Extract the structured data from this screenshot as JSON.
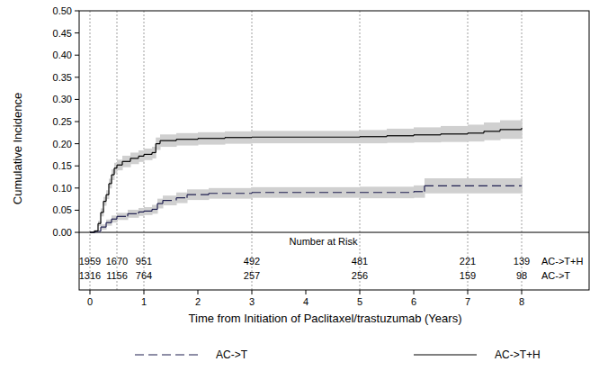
{
  "chart_data": {
    "type": "line",
    "x_label": "Time from Initiation of Paclitaxel/trastuzumab (Years)",
    "y_label": "Cumulative Incidence",
    "risk_title": "Number at Risk",
    "xlim": [
      -0.2,
      9.25
    ],
    "ylim": [
      -0.13,
      0.5
    ],
    "xticks": [
      0,
      1,
      2,
      3,
      4,
      5,
      6,
      7,
      8
    ],
    "yticks": [
      {
        "value": 0,
        "label": "0.00"
      },
      {
        "value": 0.05,
        "label": "0.05"
      },
      {
        "value": 0.1,
        "label": "0.10"
      },
      {
        "value": 0.15,
        "label": "0.15"
      },
      {
        "value": 0.2,
        "label": "0.20"
      },
      {
        "value": 0.25,
        "label": "0.25"
      },
      {
        "value": 0.3,
        "label": "0.30"
      },
      {
        "value": 0.35,
        "label": "0.35"
      },
      {
        "value": 0.4,
        "label": "0.40"
      },
      {
        "value": 0.45,
        "label": "0.45"
      },
      {
        "value": 0.5,
        "label": "0.50"
      }
    ],
    "risk_times": [
      0,
      0.5,
      1,
      3,
      5,
      7,
      8
    ],
    "legend": "bottom",
    "series": [
      {
        "name": "AC->T",
        "color": "#1f1f4f",
        "line_style": "dashed",
        "x": [
          0,
          0.1,
          0.2,
          0.3,
          0.4,
          0.5,
          0.7,
          0.9,
          1.0,
          1.15,
          1.25,
          1.35,
          1.6,
          1.8,
          2.2,
          3.0,
          5.0,
          6.0,
          6.2,
          8.0
        ],
        "values": [
          0,
          0.002,
          0.012,
          0.022,
          0.03,
          0.036,
          0.042,
          0.046,
          0.048,
          0.052,
          0.065,
          0.072,
          0.078,
          0.085,
          0.088,
          0.09,
          0.09,
          0.092,
          0.105,
          0.105
        ],
        "lower": [
          0,
          0,
          0.006,
          0.015,
          0.022,
          0.028,
          0.033,
          0.037,
          0.039,
          0.042,
          0.054,
          0.061,
          0.066,
          0.073,
          0.076,
          0.078,
          0.077,
          0.078,
          0.088,
          0.087
        ],
        "upper": [
          0,
          0.004,
          0.018,
          0.029,
          0.038,
          0.044,
          0.051,
          0.055,
          0.057,
          0.062,
          0.076,
          0.083,
          0.09,
          0.097,
          0.1,
          0.102,
          0.103,
          0.106,
          0.122,
          0.123
        ],
        "at_risk": [
          1316,
          1156,
          764,
          257,
          256,
          159,
          98
        ]
      },
      {
        "name": "AC->T+H",
        "color": "#000000",
        "line_style": "solid",
        "x": [
          0,
          0.08,
          0.15,
          0.2,
          0.25,
          0.3,
          0.35,
          0.4,
          0.45,
          0.5,
          0.6,
          0.75,
          0.9,
          1.0,
          1.15,
          1.22,
          1.3,
          1.6,
          2.0,
          2.5,
          3.0,
          5.0,
          5.5,
          6.0,
          6.5,
          7.0,
          7.3,
          7.6,
          8.0
        ],
        "values": [
          0,
          0.003,
          0.02,
          0.045,
          0.07,
          0.085,
          0.11,
          0.13,
          0.145,
          0.152,
          0.16,
          0.167,
          0.172,
          0.176,
          0.18,
          0.2,
          0.207,
          0.21,
          0.212,
          0.214,
          0.215,
          0.216,
          0.218,
          0.22,
          0.222,
          0.224,
          0.228,
          0.232,
          0.236
        ],
        "lower": [
          0,
          0.001,
          0.014,
          0.036,
          0.06,
          0.075,
          0.099,
          0.118,
          0.133,
          0.14,
          0.147,
          0.154,
          0.159,
          0.163,
          0.167,
          0.186,
          0.193,
          0.196,
          0.198,
          0.2,
          0.201,
          0.201,
          0.202,
          0.203,
          0.204,
          0.205,
          0.208,
          0.211,
          0.214
        ],
        "upper": [
          0,
          0.005,
          0.026,
          0.054,
          0.08,
          0.095,
          0.121,
          0.142,
          0.157,
          0.164,
          0.173,
          0.18,
          0.185,
          0.189,
          0.193,
          0.214,
          0.221,
          0.224,
          0.226,
          0.228,
          0.229,
          0.231,
          0.234,
          0.237,
          0.24,
          0.243,
          0.248,
          0.253,
          0.258
        ],
        "at_risk": [
          1959,
          1670,
          951,
          492,
          481,
          221,
          139
        ]
      }
    ]
  }
}
